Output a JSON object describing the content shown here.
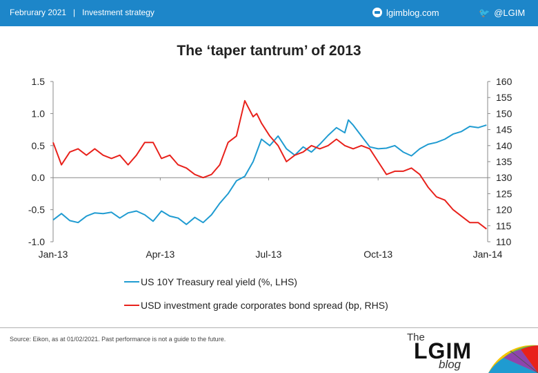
{
  "header": {
    "date": "Februrary 2021",
    "separator": "|",
    "category": "Investment strategy",
    "site": "lgimblog.com",
    "handle": "@LGIM",
    "site_icon": "globe-icon",
    "handle_icon": "twitter-bird-icon",
    "bar_color": "#1d86c9"
  },
  "chart_data": {
    "type": "line",
    "title": "The ‘taper tantrum’ of 2013",
    "x_tick_labels": [
      "Jan-13",
      "Apr-13",
      "Jul-13",
      "Oct-13",
      "Jan-14"
    ],
    "x_ticks": [
      "2013-01-01",
      "2013-04-01",
      "2013-07-01",
      "2013-10-01",
      "2014-01-01"
    ],
    "xlim": [
      "2013-01-01",
      "2014-01-01"
    ],
    "y_left": {
      "ylim": [
        -1.0,
        1.5
      ],
      "ticks": [
        "1.5",
        "1.0",
        "0.5",
        "0.0",
        "-0.5",
        "-1.0"
      ]
    },
    "y_right": {
      "ylim": [
        110,
        160
      ],
      "ticks": [
        "160",
        "155",
        "150",
        "145",
        "140",
        "135",
        "130",
        "125",
        "120",
        "115",
        "110"
      ]
    },
    "grid": false,
    "legend_position": "bottom",
    "series": [
      {
        "name": "US 10Y Treasury real yield (%, LHS)",
        "axis": "left",
        "color": "#1f9bd1",
        "x": [
          "2013-01-01",
          "2013-01-08",
          "2013-01-15",
          "2013-01-22",
          "2013-01-29",
          "2013-02-05",
          "2013-02-12",
          "2013-02-19",
          "2013-02-26",
          "2013-03-05",
          "2013-03-12",
          "2013-03-19",
          "2013-03-26",
          "2013-04-02",
          "2013-04-09",
          "2013-04-16",
          "2013-04-23",
          "2013-04-30",
          "2013-05-07",
          "2013-05-14",
          "2013-05-21",
          "2013-05-28",
          "2013-06-04",
          "2013-06-11",
          "2013-06-18",
          "2013-06-25",
          "2013-07-02",
          "2013-07-09",
          "2013-07-16",
          "2013-07-23",
          "2013-07-30",
          "2013-08-06",
          "2013-08-13",
          "2013-08-20",
          "2013-08-27",
          "2013-09-03",
          "2013-09-06",
          "2013-09-10",
          "2013-09-17",
          "2013-09-24",
          "2013-10-01",
          "2013-10-08",
          "2013-10-15",
          "2013-10-22",
          "2013-10-29",
          "2013-11-05",
          "2013-11-12",
          "2013-11-19",
          "2013-11-26",
          "2013-12-03",
          "2013-12-10",
          "2013-12-17",
          "2013-12-24",
          "2013-12-31"
        ],
        "values": [
          -0.66,
          -0.56,
          -0.67,
          -0.7,
          -0.6,
          -0.55,
          -0.56,
          -0.54,
          -0.63,
          -0.55,
          -0.52,
          -0.58,
          -0.68,
          -0.52,
          -0.6,
          -0.63,
          -0.73,
          -0.62,
          -0.7,
          -0.58,
          -0.4,
          -0.25,
          -0.05,
          0.02,
          0.25,
          0.6,
          0.5,
          0.65,
          0.45,
          0.35,
          0.48,
          0.4,
          0.52,
          0.66,
          0.78,
          0.7,
          0.9,
          0.82,
          0.65,
          0.48,
          0.45,
          0.46,
          0.5,
          0.4,
          0.34,
          0.45,
          0.52,
          0.55,
          0.6,
          0.68,
          0.72,
          0.8,
          0.78,
          0.82
        ]
      },
      {
        "name": "USD investment grade corporates bond spread (bp, RHS)",
        "axis": "right",
        "color": "#e8211b",
        "x": [
          "2013-01-01",
          "2013-01-08",
          "2013-01-15",
          "2013-01-22",
          "2013-01-29",
          "2013-02-05",
          "2013-02-12",
          "2013-02-19",
          "2013-02-26",
          "2013-03-05",
          "2013-03-12",
          "2013-03-19",
          "2013-03-26",
          "2013-04-02",
          "2013-04-09",
          "2013-04-16",
          "2013-04-23",
          "2013-04-30",
          "2013-05-07",
          "2013-05-14",
          "2013-05-21",
          "2013-05-28",
          "2013-06-04",
          "2013-06-11",
          "2013-06-18",
          "2013-06-21",
          "2013-06-25",
          "2013-07-02",
          "2013-07-09",
          "2013-07-16",
          "2013-07-23",
          "2013-07-30",
          "2013-08-06",
          "2013-08-13",
          "2013-08-20",
          "2013-08-27",
          "2013-09-03",
          "2013-09-10",
          "2013-09-17",
          "2013-09-24",
          "2013-10-01",
          "2013-10-08",
          "2013-10-15",
          "2013-10-22",
          "2013-10-29",
          "2013-11-05",
          "2013-11-12",
          "2013-11-19",
          "2013-11-26",
          "2013-12-03",
          "2013-12-10",
          "2013-12-17",
          "2013-12-24",
          "2013-12-31"
        ],
        "values": [
          141,
          134,
          138,
          139,
          137,
          139,
          137,
          136,
          137,
          134,
          137,
          141,
          141,
          136,
          137,
          134,
          133,
          131,
          130,
          131,
          134,
          141,
          143,
          154,
          149,
          150,
          147,
          143,
          140,
          135,
          137,
          138,
          140,
          139,
          140,
          142,
          140,
          139,
          140,
          139,
          135,
          131,
          132,
          132,
          133,
          131,
          127,
          124,
          123,
          120,
          118,
          116,
          116,
          114
        ]
      }
    ]
  },
  "footer": {
    "source": "Source: Eikon, as at 01/02/2021. Past performance is not a guide to the future."
  },
  "brand": {
    "the": "The",
    "name": "LGIM",
    "sub": "blog",
    "umbrella_icon": "umbrella-icon"
  }
}
